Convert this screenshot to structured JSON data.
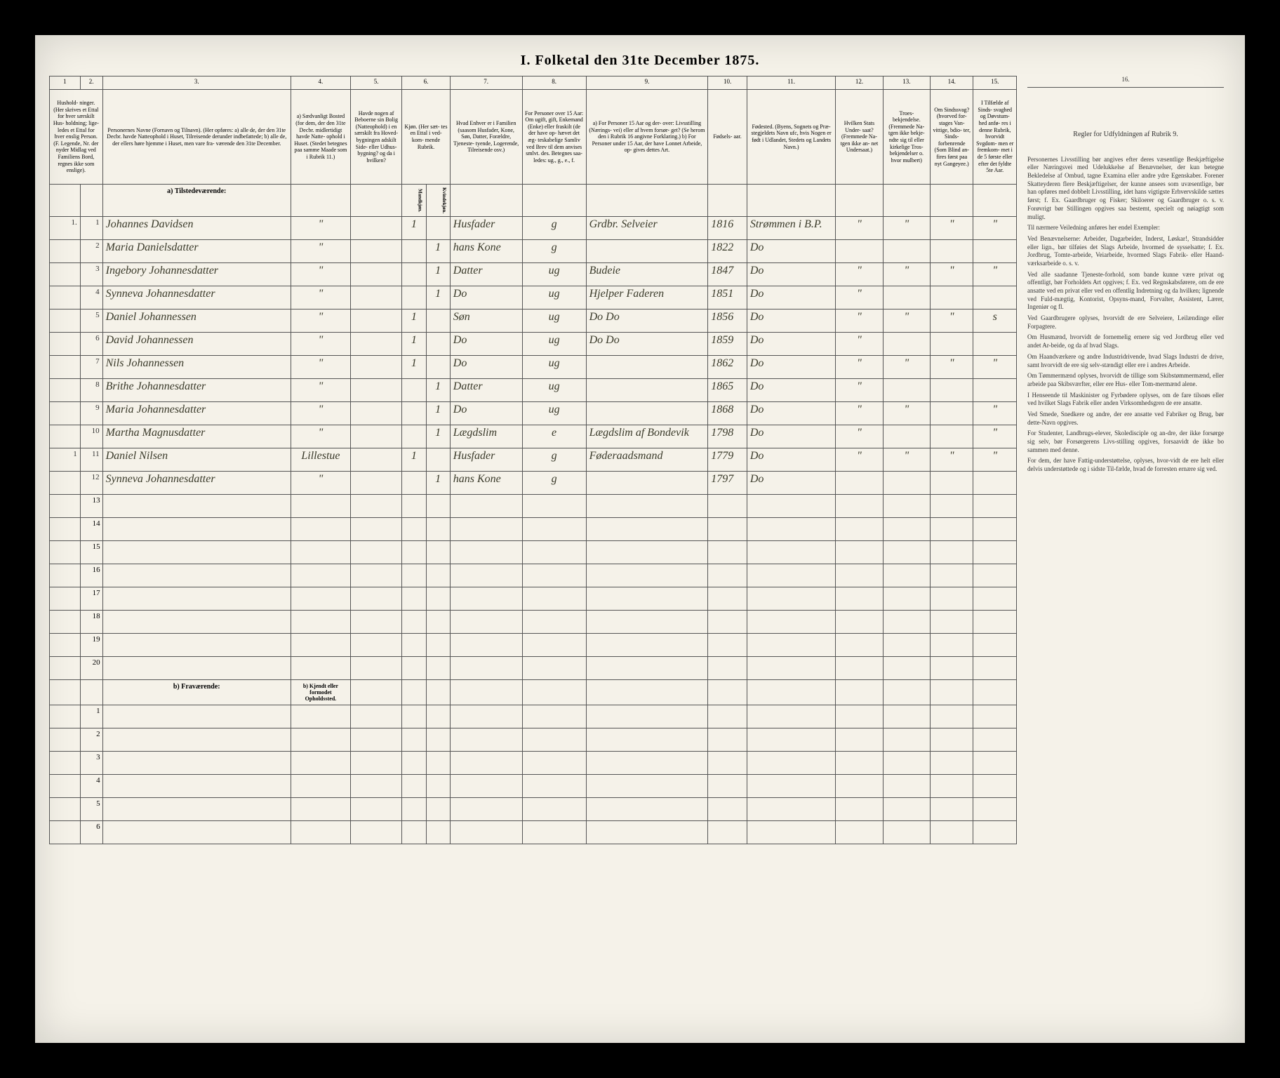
{
  "title": "I. Folketal den 31te December 1875.",
  "columns": {
    "nums": [
      "1",
      "2.",
      "3.",
      "4.",
      "5.",
      "6.",
      "7.",
      "8.",
      "9.",
      "10.",
      "11.",
      "12.",
      "13.",
      "14.",
      "15.",
      "16."
    ],
    "h1": "Hushold-\nninger.\n(Her skrives et\nEttal for hver\nsærskilt Hus-\nholdning; lige-\nledes et Ettal for\nhver enslig\nPerson.\n(F. Legende, Nr.\nder nyder Midlag\nved Familiens\nBord, regnes ikke\nsom enslige).",
    "h3": "Personernes Navne (Fornavn og Tilnavn).\n(Her opføres:\na) alle de, der den 31te Decbr. havde Natteophold i\nHuset, Tilreisende derunder indbefattede;\nb) alle de, der ellers høre hjemme i Huset, men vare fra-\nværende den 31te December.",
    "h4": "a) Sædvanligt\nBosted (for\ndem, der den\n31te Decbr.\nmidlertidigt\nhavde Natte-\nophold i Huset.\n(Stedet betegnes\npaa samme Maade\nsom i Rubrik 11.)",
    "h5": "Havde nogen\naf Beboerne\nsin Bolig\n(Natteophold)\ni en særskilt\nfra Hoved-\nbygningen\nadskilt Side-\neller Udhus-\nbygning?\nog da i\nhvilken?",
    "h6": "Kjøn.\n(Her\nsæt-\ntes en\nEttal\ni ved-\nkom-\nmende\nRubrik.",
    "h6a": "Mandkjøn.",
    "h6b": "Kvindekjøn.",
    "h7": "Hvad Enhver er\ni Familien\n(saasom Husfader,\nKone, Søn, Datter,\nForældre, Tjeneste-\ntyende, Logerende,\nTilreisende osv.)",
    "h8": "For Personer\nover 15 Aar:\nOm ugift, gift,\nEnkemand\n(Enke) eller\nfraskilt (de\nder have op-\nhævet det æg-\nteskabelige\nSamliv ved\nBrev til dem\nanvises smlvt.\ndes.\nBetegnes saa-\nledes:\nug., g., e., f.",
    "h9": "a) For Personer 15 Aar og der-\nover: Livsstilling (Nærings-\nvei) eller af hvem forsør-\nget? (Se herom den i Rubrik 16\nangivne Forklaring.)\nb) For Personer under 15 Aar,\nder have Lonnet Arbeide, op-\ngives dettes Art.",
    "h10": "Fødsels-\naar.",
    "h11": "Fødested.\n(Byens, Sognets og Præ-\nstegjeldets Navn ufc, hvis\nNogen er født i Udlandet,\nStedets og Landets\nNavn.)",
    "h12": "Hvilken\nStats Under-\nsaat?\n(Fremmede Na-\ntgen ikke an-\nnet\nUndersaat.)",
    "h13": "Troes-\nbekjendelse.\n(Fremmede Na-\ntgen ikke bekje-\nndte sig til eller\nkirkelige Tros-\nbekjendelser o.\nhvor mulbert)",
    "h14": "Om\nSindssvag?\n(hvorved for-\nstages Van-\nvittige, bdio-\nter, Sinds-\nforbenrende\n(Som Blind an-\nfires først\npaa nyt\nGangeyee.)",
    "h15": "I Tilfælde\naf Sinds-\nsvaghed og\nDøvstum-\nhed anfø-\nres i denne\nRubrik,\nhvorvidt\nSvgdom-\nmen er\nfremkom-\nmet i de 5\nførste eller\nefter det\nfyldte\n5te Aar.",
    "h16": "Regler for Udfyldningen\naf\nRubrik 9."
  },
  "section_a": "a) Tilstedeværende:",
  "section_b": "b) Fraværende:",
  "section_b_col4": "b) Kjendt eller\nformodet\nOpholdssted.",
  "rows": [
    {
      "hh": "1.",
      "n": "1",
      "name": "Johannes Davidsen",
      "c4": "\"",
      "c5": "",
      "m": "1",
      "k": "",
      "fam": "Husfader",
      "civ": "g",
      "occ": "Grdbr. Selveier",
      "yr": "1816",
      "bp": "Strømmen i B.P.",
      "c12": "\"",
      "c13": "\"",
      "c14": "\"",
      "c15": "\""
    },
    {
      "hh": "",
      "n": "2",
      "name": "Maria Danielsdatter",
      "c4": "\"",
      "c5": "",
      "m": "",
      "k": "1",
      "fam": "hans Kone",
      "civ": "g",
      "occ": "",
      "yr": "1822",
      "bp": "Do",
      "c12": "",
      "c13": "",
      "c14": "",
      "c15": ""
    },
    {
      "hh": "",
      "n": "3",
      "name": "Ingebory Johannesdatter",
      "c4": "\"",
      "c5": "",
      "m": "",
      "k": "1",
      "fam": "Datter",
      "civ": "ug",
      "occ": "Budeie",
      "yr": "1847",
      "bp": "Do",
      "c12": "\"",
      "c13": "\"",
      "c14": "\"",
      "c15": "\""
    },
    {
      "hh": "",
      "n": "4",
      "name": "Synneva Johannesdatter",
      "c4": "\"",
      "c5": "",
      "m": "",
      "k": "1",
      "fam": "Do",
      "civ": "ug",
      "occ": "Hjelper Faderen",
      "yr": "1851",
      "bp": "Do",
      "c12": "\"",
      "c13": "",
      "c14": "",
      "c15": ""
    },
    {
      "hh": "",
      "n": "5",
      "name": "Daniel Johannessen",
      "c4": "\"",
      "c5": "",
      "m": "1",
      "k": "",
      "fam": "Søn",
      "civ": "ug",
      "occ": "Do  Do",
      "yr": "1856",
      "bp": "Do",
      "c12": "\"",
      "c13": "\"",
      "c14": "\"",
      "c15": "s"
    },
    {
      "hh": "",
      "n": "6",
      "name": "David Johannessen",
      "c4": "\"",
      "c5": "",
      "m": "1",
      "k": "",
      "fam": "Do",
      "civ": "ug",
      "occ": "Do  Do",
      "yr": "1859",
      "bp": "Do",
      "c12": "\"",
      "c13": "",
      "c14": "",
      "c15": ""
    },
    {
      "hh": "",
      "n": "7",
      "name": "Nils Johannessen",
      "c4": "\"",
      "c5": "",
      "m": "1",
      "k": "",
      "fam": "Do",
      "civ": "ug",
      "occ": "",
      "yr": "1862",
      "bp": "Do",
      "c12": "\"",
      "c13": "\"",
      "c14": "\"",
      "c15": "\""
    },
    {
      "hh": "",
      "n": "8",
      "name": "Brithe Johannesdatter",
      "c4": "\"",
      "c5": "",
      "m": "",
      "k": "1",
      "fam": "Datter",
      "civ": "ug",
      "occ": "",
      "yr": "1865",
      "bp": "Do",
      "c12": "\"",
      "c13": "",
      "c14": "",
      "c15": ""
    },
    {
      "hh": "",
      "n": "9",
      "name": "Maria Johannesdatter",
      "c4": "\"",
      "c5": "",
      "m": "",
      "k": "1",
      "fam": "Do",
      "civ": "ug",
      "occ": "",
      "yr": "1868",
      "bp": "Do",
      "c12": "\"",
      "c13": "\"",
      "c14": "",
      "c15": "\""
    },
    {
      "hh": "",
      "n": "10",
      "name": "Martha Magnusdatter",
      "c4": "\"",
      "c5": "",
      "m": "",
      "k": "1",
      "fam": "Lægdslim",
      "civ": "e",
      "occ": "Lægdslim af Bondevik",
      "yr": "1798",
      "bp": "Do",
      "c12": "\"",
      "c13": "",
      "c14": "",
      "c15": "\""
    },
    {
      "hh": "1",
      "n": "11",
      "name": "Daniel Nilsen",
      "c4": "Lillestue",
      "c5": "",
      "m": "1",
      "k": "",
      "fam": "Husfader",
      "civ": "g",
      "occ": "Føderaadsmand",
      "yr": "1779",
      "bp": "Do",
      "c12": "\"",
      "c13": "\"",
      "c14": "\"",
      "c15": "\""
    },
    {
      "hh": "",
      "n": "12",
      "name": "Synneva Johannesdatter",
      "c4": "\"",
      "c5": "",
      "m": "",
      "k": "1",
      "fam": "hans Kone",
      "civ": "g",
      "occ": "",
      "yr": "1797",
      "bp": "Do",
      "c12": "",
      "c13": "",
      "c14": "",
      "c15": ""
    }
  ],
  "emptyA": [
    "13",
    "14",
    "15",
    "16",
    "17",
    "18",
    "19",
    "20"
  ],
  "emptyB": [
    "1",
    "2",
    "3",
    "4",
    "5",
    "6"
  ],
  "rules": {
    "title": "",
    "paras": [
      "Personernes Livsstilling bør angives efter deres væsentlige Beskjæftigelse eller Næringsvei med Udelukkelse af Benævnelser, der kun betegne Bekledelse af Ombud, tagne Examina eller andre ydre Egenskaber. Forener Skatteyderen flere Beskjæftigelser, der kunne ansees som uvæsentlige, bør han opføres med dobbelt Livsstilling, idet hans vigtigste Erhvervskilde sættes først; f. Ex. Gaardbruger og Fisker; Skiloerer og Gaardbruger o. s. v. Forøvrigt bør Stillingen opgives saa bestemt, specielt og nøiagtigt som muligt.",
      "Til nærmere Veiledning anføres her endel Exempler:",
      "Ved Benævnelserne: Arbeider, Dagarbeider, Inderst, Løskar!, Strandsidder eller lign., bør tilføies det Slags Arbeide, hvormed de sysselsatte; f. Ex. Jordbrug, Tomte-arbeide, Veiarbeide, hvormed Slags Fabrik- eller Haand-værksarbeide o. s. v.",
      "Ved alle saadanne Tjeneste-forhold, som bande kunne være privat og offentligt, bør Forholdets Art opgives; f. Ex. ved Regnskabsførere, om de ere ansatte ved en privat eller ved en offentlig Indretning og da hvilken; lignende ved Fuld-mægtig, Kontorist, Opsyns-mand, Forvalter, Assistent, Lærer, Ingeniør og fl.",
      "Ved Gaardbrugere oplyses, hvorvidt de ere Selveiere, Leilændinge eller Forpagtere.",
      "Om Husmænd, hvorvidt de fornemelig ernere sig ved Jordbrug eller ved andet Ar-beide, og da af hvad Slags.",
      "Om Haandværkere og andre Industridrivende, hvad Slags Industri de drive, samt hvorvidt de ere sig selv-stændigt eller ere i andres Arbeide.",
      "Om Tømmermænd oplyses, hvorvidt de tillige som Skibstømmermænd, eller arbeide paa Skibsværfter, eller ere Hus- eller Tom-mermænd alene.",
      "I Henseende til Maskinister og Fyrbødere oplyses, om de fare tilsoøs eller ved hvilket Slags Fabrik eller anden Virksomhedsgren de ere ansatte.",
      "Ved Smede, Snedkere og andre, der ere ansatte ved Fabriker og Brug, bør dette-Navn opgives.",
      "For Studenter, Landbrugs-elever, Skoledisciple og an-dre, der ikke forsørge sig selv, bør Forsørgerens Livs-stilling opgives, forsaavidt de ikke bo sammen med denne.",
      "For dem, der have Fattig-understøttelse, oplyses, hvor-vidt de ere helt eller delvis understøttede og i sidste Til-fælde, hvad de forresten ernære sig ved."
    ]
  }
}
